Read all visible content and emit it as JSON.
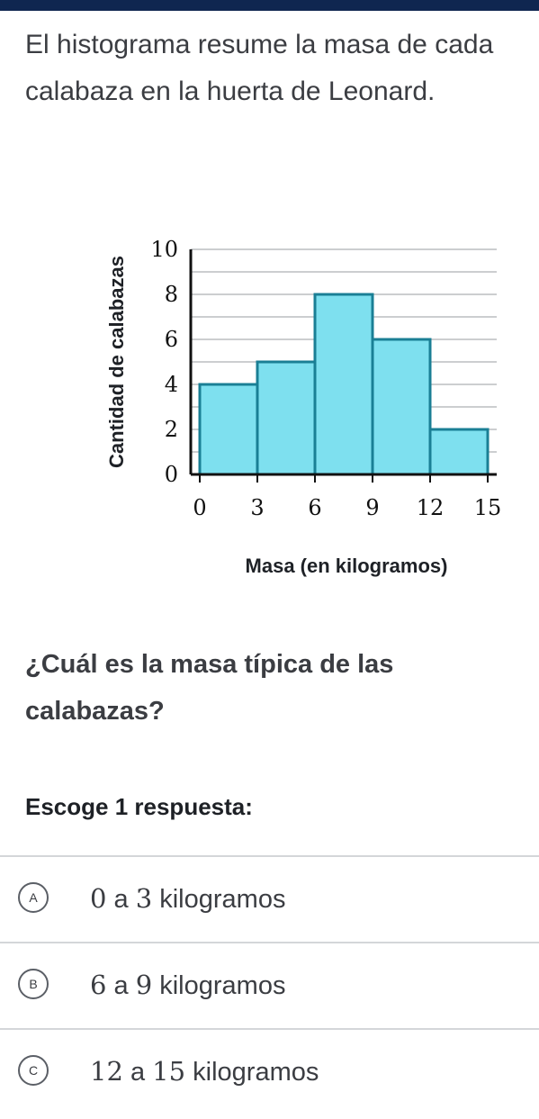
{
  "stem": "El histograma resume la masa de cada calabaza en la huerta de Leonard.",
  "question": "¿Cuál es la masa típica de las calabazas?",
  "choose_label": "Escoge 1 respuesta:",
  "choices": [
    {
      "letter": "A",
      "from": "0",
      "sep": "a",
      "to": "3",
      "unit": "kilogramos"
    },
    {
      "letter": "B",
      "from": "6",
      "sep": "a",
      "to": "9",
      "unit": "kilogramos"
    },
    {
      "letter": "C",
      "from": "12",
      "sep": "a",
      "to": "15",
      "unit": "kilogramos"
    }
  ],
  "colors": {
    "bar_fill": "#7ee0ef",
    "bar_stroke": "#1a7f95",
    "grid": "#9a9ca0",
    "axis": "#111111",
    "top_bar": "#0f2650"
  },
  "chart_data": {
    "type": "bar",
    "title": "",
    "xlabel": "Masa (en kilogramos)",
    "ylabel": "Cantidad de calabazas",
    "bins": [
      [
        0,
        3
      ],
      [
        3,
        6
      ],
      [
        6,
        9
      ],
      [
        9,
        12
      ],
      [
        12,
        15
      ]
    ],
    "values": [
      4,
      5,
      8,
      6,
      2
    ],
    "x_ticks": [
      "0",
      "3",
      "6",
      "9",
      "12",
      "15"
    ],
    "y_ticks": [
      "0",
      "2",
      "4",
      "6",
      "8",
      "10"
    ],
    "xlim": [
      0,
      15
    ],
    "ylim": [
      0,
      10
    ],
    "grid": true
  }
}
